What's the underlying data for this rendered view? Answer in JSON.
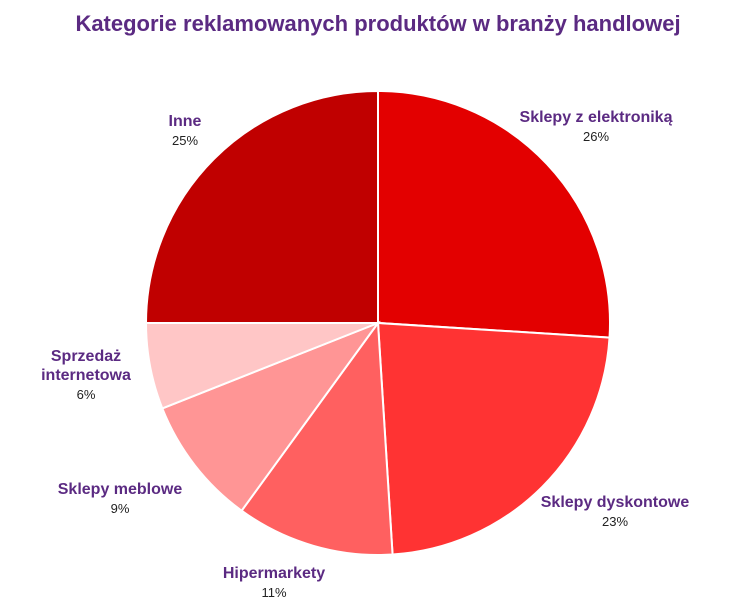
{
  "chart_data": {
    "type": "pie",
    "title": "Kategorie reklamowanych produktów w branży handlowej",
    "slices": [
      {
        "label": "Sklepy z elektroniką",
        "value": 26,
        "display": "26%",
        "color": "#e30000"
      },
      {
        "label": "Sklepy dyskontowe",
        "value": 23,
        "display": "23%",
        "color": "#ff3333"
      },
      {
        "label": "Hipermarkety",
        "value": 11,
        "display": "11%",
        "color": "#ff6060"
      },
      {
        "label": "Sklepy meblowe",
        "value": 9,
        "display": "9%",
        "color": "#ff9595"
      },
      {
        "label": "Sprzedaż\ninternetowa",
        "value": 6,
        "display": "6%",
        "color": "#ffc6c6"
      },
      {
        "label": "Inne",
        "value": 25,
        "display": "25%",
        "color": "#c00000"
      }
    ],
    "start_angle": "12 o'clock",
    "direction": "clockwise",
    "legend": "none"
  }
}
